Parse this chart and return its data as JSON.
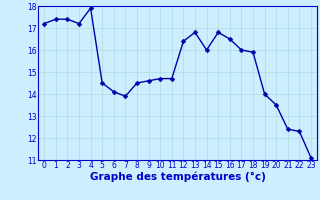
{
  "x": [
    0,
    1,
    2,
    3,
    4,
    5,
    6,
    7,
    8,
    9,
    10,
    11,
    12,
    13,
    14,
    15,
    16,
    17,
    18,
    19,
    20,
    21,
    22,
    23
  ],
  "y": [
    17.2,
    17.4,
    17.4,
    17.2,
    17.9,
    14.5,
    14.1,
    13.9,
    14.5,
    14.6,
    14.7,
    14.7,
    16.4,
    16.8,
    16.0,
    16.8,
    16.5,
    16.0,
    15.9,
    14.0,
    13.5,
    12.4,
    12.3,
    11.1
  ],
  "line_color": "#0000aa",
  "marker_color": "#0000aa",
  "bg_color": "#cceeff",
  "grid_color": "#aadddd",
  "xlabel": "Graphe des températures (°c)",
  "xlabel_color": "#0000cc",
  "ylim": [
    11,
    18
  ],
  "xlim": [
    -0.5,
    23.5
  ],
  "yticks": [
    11,
    12,
    13,
    14,
    15,
    16,
    17,
    18
  ],
  "xticks": [
    0,
    1,
    2,
    3,
    4,
    5,
    6,
    7,
    8,
    9,
    10,
    11,
    12,
    13,
    14,
    15,
    16,
    17,
    18,
    19,
    20,
    21,
    22,
    23
  ],
  "tick_color": "#0000cc",
  "tick_fontsize": 5.5,
  "xlabel_fontsize": 7.5,
  "line_width": 1.0,
  "marker_size": 2.5
}
